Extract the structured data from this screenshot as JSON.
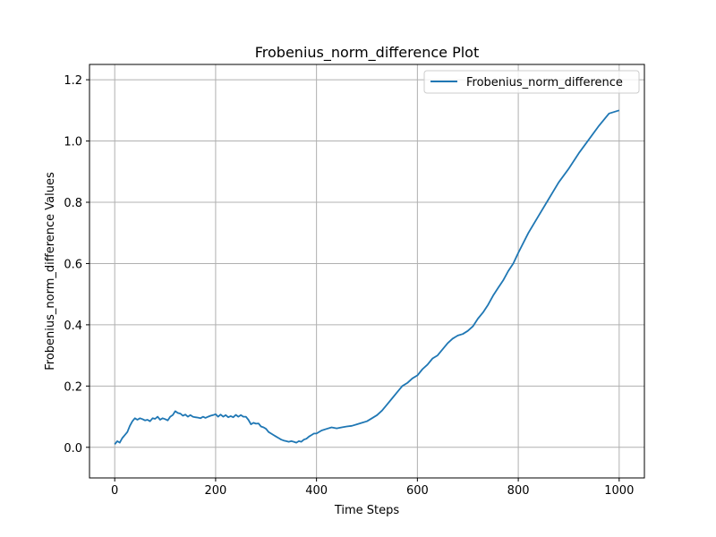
{
  "chart_data": {
    "type": "line",
    "title": "Frobenius_norm_difference Plot",
    "xlabel": "Time Steps",
    "ylabel": "Frobenius_norm_difference Values",
    "xlim": [
      -50,
      1050
    ],
    "ylim": [
      -0.1,
      1.25
    ],
    "xticks": [
      0,
      200,
      400,
      600,
      800,
      1000
    ],
    "yticks": [
      0.0,
      0.2,
      0.4,
      0.6,
      0.8,
      1.0,
      1.2
    ],
    "xtick_labels": [
      "0",
      "200",
      "400",
      "600",
      "800",
      "1000"
    ],
    "ytick_labels": [
      "0.0",
      "0.2",
      "0.4",
      "0.6",
      "0.8",
      "1.0",
      "1.2"
    ],
    "grid": true,
    "legend_position": "top-right",
    "series": [
      {
        "name": "Frobenius_norm_difference",
        "color": "#1f77b4",
        "x": [
          0,
          5,
          10,
          15,
          20,
          25,
          30,
          35,
          40,
          45,
          50,
          55,
          60,
          65,
          70,
          75,
          80,
          85,
          90,
          95,
          100,
          105,
          110,
          115,
          120,
          125,
          130,
          135,
          140,
          145,
          150,
          155,
          160,
          165,
          170,
          175,
          180,
          185,
          190,
          195,
          200,
          205,
          210,
          215,
          220,
          225,
          230,
          235,
          240,
          245,
          250,
          255,
          260,
          265,
          270,
          275,
          280,
          285,
          290,
          295,
          300,
          305,
          310,
          315,
          320,
          325,
          330,
          335,
          340,
          345,
          350,
          355,
          360,
          365,
          370,
          375,
          380,
          385,
          390,
          395,
          400,
          410,
          420,
          430,
          440,
          450,
          460,
          470,
          480,
          490,
          500,
          510,
          520,
          530,
          540,
          550,
          560,
          570,
          580,
          590,
          600,
          610,
          620,
          630,
          640,
          650,
          660,
          670,
          680,
          690,
          700,
          710,
          720,
          730,
          740,
          750,
          760,
          770,
          780,
          790,
          800,
          820,
          840,
          860,
          880,
          900,
          920,
          940,
          960,
          980,
          1000
        ],
        "values": [
          0.01,
          0.02,
          0.015,
          0.03,
          0.04,
          0.05,
          0.07,
          0.085,
          0.095,
          0.09,
          0.095,
          0.092,
          0.088,
          0.09,
          0.085,
          0.095,
          0.093,
          0.1,
          0.09,
          0.095,
          0.092,
          0.088,
          0.1,
          0.105,
          0.118,
          0.112,
          0.11,
          0.103,
          0.107,
          0.1,
          0.105,
          0.1,
          0.098,
          0.097,
          0.095,
          0.1,
          0.096,
          0.1,
          0.103,
          0.105,
          0.108,
          0.1,
          0.107,
          0.1,
          0.105,
          0.098,
          0.102,
          0.098,
          0.106,
          0.1,
          0.105,
          0.1,
          0.1,
          0.09,
          0.075,
          0.08,
          0.077,
          0.078,
          0.068,
          0.065,
          0.06,
          0.05,
          0.045,
          0.04,
          0.035,
          0.03,
          0.025,
          0.022,
          0.02,
          0.018,
          0.02,
          0.018,
          0.015,
          0.02,
          0.018,
          0.025,
          0.028,
          0.035,
          0.04,
          0.045,
          0.045,
          0.055,
          0.06,
          0.065,
          0.062,
          0.065,
          0.068,
          0.07,
          0.075,
          0.08,
          0.085,
          0.095,
          0.105,
          0.12,
          0.14,
          0.16,
          0.18,
          0.2,
          0.21,
          0.225,
          0.235,
          0.255,
          0.27,
          0.29,
          0.3,
          0.32,
          0.34,
          0.355,
          0.365,
          0.37,
          0.38,
          0.395,
          0.42,
          0.44,
          0.465,
          0.495,
          0.52,
          0.545,
          0.575,
          0.6,
          0.635,
          0.7,
          0.755,
          0.81,
          0.865,
          0.91,
          0.96,
          1.005,
          1.05,
          1.09,
          1.1
        ]
      }
    ]
  }
}
